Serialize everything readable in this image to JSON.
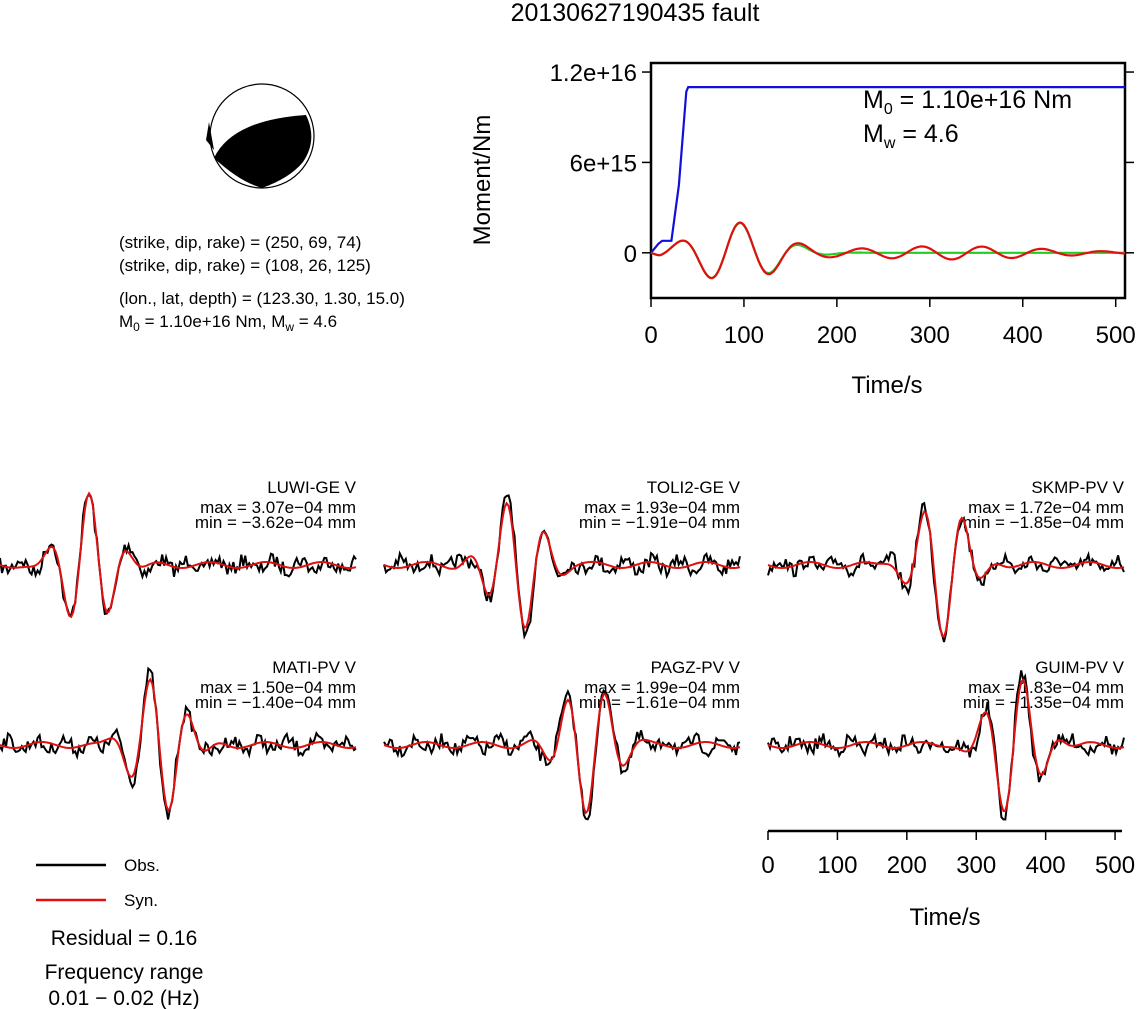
{
  "title": "20130627190435 fault",
  "mechanism": {
    "line1": "(strike, dip, rake) = (250, 69, 74)",
    "line2": "(strike, dip, rake) = (108, 26, 125)",
    "line3": "(lon., lat, depth) = (123.30, 1.30, 15.0)",
    "m0_text": "M",
    "m0_sub": "0",
    "m0_value": " = 1.10e+16 Nm, M",
    "mw_sub": "w",
    "mw_value": " = 4.6"
  },
  "colors": {
    "observed": "#000000",
    "synthetic": "#e01010",
    "moment": "#1010dd",
    "green_trace": "#22cc22"
  },
  "chart_data": [
    {
      "type": "line",
      "title": "",
      "xlabel": "Time/s",
      "ylabel": "Moment/Nm",
      "xlim": [
        0,
        510
      ],
      "ylim": [
        -3000000000000000.0,
        1.26e+16
      ],
      "x_ticks": [
        "0",
        "100",
        "200",
        "300",
        "400",
        "500"
      ],
      "y_ticks": [
        "0",
        "6e+15",
        "1.2e+16"
      ],
      "annotation": {
        "m0_symbol": "M",
        "m0_sub": "0",
        "m0_rest": " = 1.10e+16 Nm",
        "mw_symbol": "M",
        "mw_sub": "w",
        "mw_rest": " = 4.6"
      },
      "series": [
        {
          "color": "#1010dd",
          "x": [
            0,
            8,
            12,
            22,
            30,
            38,
            40,
            510
          ],
          "y": [
            0,
            600000000000000.0,
            800000000000000.0,
            800000000000000.0,
            4500000000000000.0,
            1.07e+16,
            1.1e+16,
            1.1e+16
          ]
        }
      ]
    },
    {
      "type": "line",
      "title": "",
      "xlabel": "Time/s",
      "xlim": [
        0,
        510
      ],
      "x_ticks": [
        "0",
        "100",
        "200",
        "300",
        "400",
        "500"
      ],
      "legend": {
        "obs": "Obs.",
        "syn": "Syn.",
        "placement": "bottom-left"
      },
      "stations": [
        {
          "name": "LUWI-GE V",
          "max": "max = 3.07e−04 mm",
          "min": "min = −3.62e−04 mm"
        },
        {
          "name": "TOLI2-GE V",
          "max": "max = 1.93e−04 mm",
          "min": "min = −1.91e−04 mm"
        },
        {
          "name": "SKMP-PV V",
          "max": "max = 1.72e−04 mm",
          "min": "min = −1.85e−04 mm"
        },
        {
          "name": "MATI-PV V",
          "max": "max = 1.50e−04 mm",
          "min": "min = −1.40e−04 mm"
        },
        {
          "name": "PAGZ-PV V",
          "max": "max = 1.99e−04 mm",
          "min": "min = −1.61e−04 mm"
        },
        {
          "name": "GUIM-PV V",
          "max": "max = 1.83e−04 mm",
          "min": "min = −1.35e−04 mm"
        }
      ]
    }
  ],
  "residual": "Residual = 0.16",
  "freq_label": "Frequency range",
  "freq_value": "0.01 − 0.02 (Hz)"
}
